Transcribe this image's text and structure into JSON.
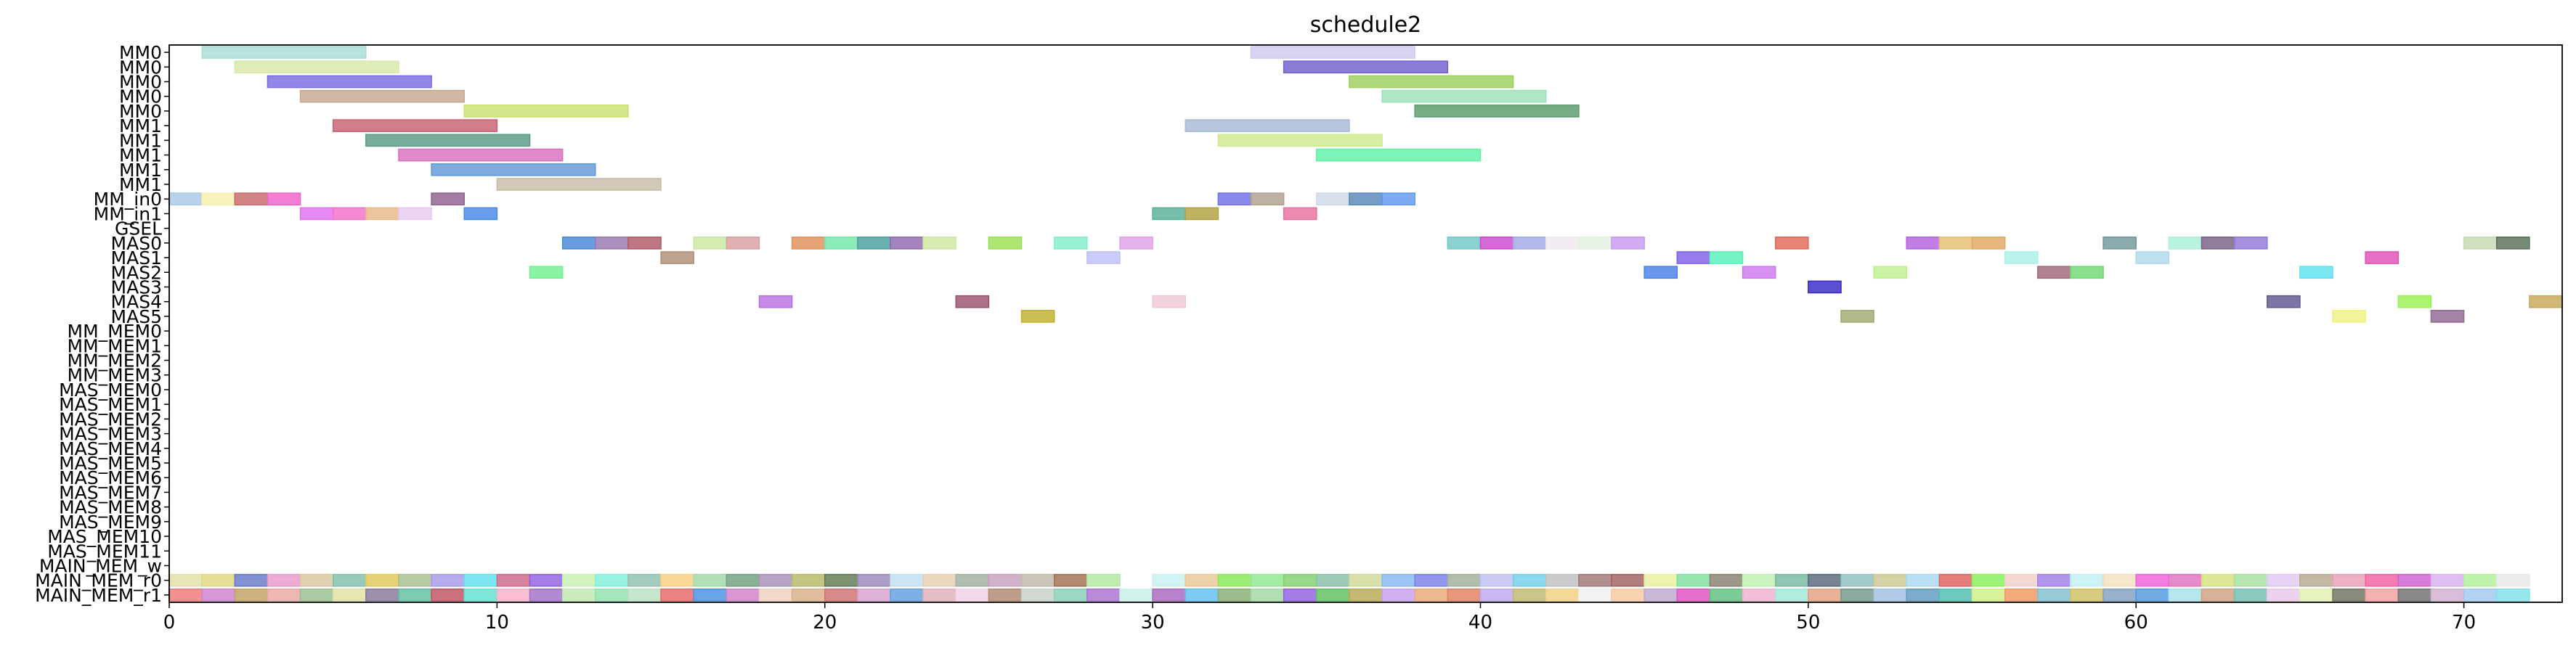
{
  "chart_data": {
    "type": "gantt",
    "title": "schedule2",
    "xlabel": "",
    "ylabel": "",
    "xlim": [
      0,
      73
    ],
    "x_ticks": [
      0,
      10,
      20,
      30,
      40,
      50,
      60,
      70
    ],
    "grid": false,
    "rows": [
      "MM0",
      "MM0",
      "MM0",
      "MM0",
      "MM0",
      "MM1",
      "MM1",
      "MM1",
      "MM1",
      "MM1",
      "MM_in0",
      "MM_in1",
      "GSEL",
      "MAS0",
      "MAS1",
      "MAS2",
      "MAS3",
      "MAS4",
      "MAS5",
      "MM_MEM0",
      "MM_MEM1",
      "MM_MEM2",
      "MM_MEM3",
      "MAS_MEM0",
      "MAS_MEM1",
      "MAS_MEM2",
      "MAS_MEM3",
      "MAS_MEM4",
      "MAS_MEM5",
      "MAS_MEM6",
      "MAS_MEM7",
      "MAS_MEM8",
      "MAS_MEM9",
      "MAS_MEM10",
      "MAS_MEM11",
      "MAIN_MEM_w",
      "MAIN_MEM_r0",
      "MAIN_MEM_r1"
    ],
    "tasks": [
      {
        "row": 0,
        "start": 1,
        "end": 6,
        "color": "#a8dcd6"
      },
      {
        "row": 0,
        "start": 33,
        "end": 38,
        "color": "#cfcaf2"
      },
      {
        "row": 1,
        "start": 2,
        "end": 7,
        "color": "#d7e8a8"
      },
      {
        "row": 1,
        "start": 34,
        "end": 39,
        "color": "#7060d0"
      },
      {
        "row": 2,
        "start": 3,
        "end": 8,
        "color": "#7a6be0"
      },
      {
        "row": 2,
        "start": 36,
        "end": 41,
        "color": "#9ed060"
      },
      {
        "row": 3,
        "start": 4,
        "end": 9,
        "color": "#c8a890"
      },
      {
        "row": 3,
        "start": 37,
        "end": 42,
        "color": "#9ee0b8"
      },
      {
        "row": 4,
        "start": 9,
        "end": 14,
        "color": "#c8e070"
      },
      {
        "row": 4,
        "start": 38,
        "end": 43,
        "color": "#5a9a6a"
      },
      {
        "row": 5,
        "start": 5,
        "end": 10,
        "color": "#c86070"
      },
      {
        "row": 5,
        "start": 31,
        "end": 36,
        "color": "#a8b8d8"
      },
      {
        "row": 6,
        "start": 6,
        "end": 11,
        "color": "#5a9a88"
      },
      {
        "row": 6,
        "start": 32,
        "end": 37,
        "color": "#d0e890"
      },
      {
        "row": 7,
        "start": 7,
        "end": 12,
        "color": "#d870c0"
      },
      {
        "row": 7,
        "start": 35,
        "end": 40,
        "color": "#60f0a8"
      },
      {
        "row": 8,
        "start": 8,
        "end": 13,
        "color": "#6098d8"
      },
      {
        "row": 9,
        "start": 10,
        "end": 15,
        "color": "#c8bca8"
      },
      {
        "row": 10,
        "start": 0,
        "end": 1,
        "color": "#a8c8e8"
      },
      {
        "row": 10,
        "start": 1,
        "end": 2,
        "color": "#f8f0b0"
      },
      {
        "row": 10,
        "start": 2,
        "end": 3,
        "color": "#c86868"
      },
      {
        "row": 10,
        "start": 3,
        "end": 4,
        "color": "#f060c8"
      },
      {
        "row": 10,
        "start": 8,
        "end": 9,
        "color": "#906090"
      },
      {
        "row": 10,
        "start": 32,
        "end": 33,
        "color": "#7070e8"
      },
      {
        "row": 10,
        "start": 33,
        "end": 34,
        "color": "#b0a090"
      },
      {
        "row": 10,
        "start": 35,
        "end": 36,
        "color": "#d0d8e8"
      },
      {
        "row": 10,
        "start": 36,
        "end": 37,
        "color": "#5888b8"
      },
      {
        "row": 10,
        "start": 37,
        "end": 38,
        "color": "#6098f0"
      },
      {
        "row": 11,
        "start": 4,
        "end": 5,
        "color": "#e070f0"
      },
      {
        "row": 11,
        "start": 5,
        "end": 6,
        "color": "#f070c8"
      },
      {
        "row": 11,
        "start": 6,
        "end": 7,
        "color": "#e8b888"
      },
      {
        "row": 11,
        "start": 7,
        "end": 8,
        "color": "#e8c8f0"
      },
      {
        "row": 11,
        "start": 9,
        "end": 10,
        "color": "#4888e8"
      },
      {
        "row": 11,
        "start": 30,
        "end": 31,
        "color": "#58b098"
      },
      {
        "row": 11,
        "start": 31,
        "end": 32,
        "color": "#b0a040"
      },
      {
        "row": 11,
        "start": 34,
        "end": 35,
        "color": "#e870a0"
      },
      {
        "row": 13,
        "start": 12,
        "end": 13,
        "color": "#4888d8"
      },
      {
        "row": 13,
        "start": 13,
        "end": 14,
        "color": "#9878b0"
      },
      {
        "row": 13,
        "start": 14,
        "end": 15,
        "color": "#b05868"
      },
      {
        "row": 13,
        "start": 16,
        "end": 17,
        "color": "#c8e8a0"
      },
      {
        "row": 13,
        "start": 17,
        "end": 18,
        "color": "#d8a0a0"
      },
      {
        "row": 13,
        "start": 19,
        "end": 20,
        "color": "#e09058"
      },
      {
        "row": 13,
        "start": 20,
        "end": 21,
        "color": "#70e8a8"
      },
      {
        "row": 13,
        "start": 21,
        "end": 22,
        "color": "#48a0a0"
      },
      {
        "row": 13,
        "start": 22,
        "end": 23,
        "color": "#9068b0"
      },
      {
        "row": 13,
        "start": 23,
        "end": 24,
        "color": "#d0e8a0"
      },
      {
        "row": 13,
        "start": 25,
        "end": 26,
        "color": "#98e050"
      },
      {
        "row": 13,
        "start": 27,
        "end": 28,
        "color": "#80f0c8"
      },
      {
        "row": 13,
        "start": 29,
        "end": 30,
        "color": "#e0a0e8"
      },
      {
        "row": 13,
        "start": 39,
        "end": 40,
        "color": "#70c8c8"
      },
      {
        "row": 13,
        "start": 40,
        "end": 41,
        "color": "#d048d0"
      },
      {
        "row": 13,
        "start": 41,
        "end": 42,
        "color": "#a0a8e8"
      },
      {
        "row": 13,
        "start": 42,
        "end": 43,
        "color": "#f0e8f0"
      },
      {
        "row": 13,
        "start": 43,
        "end": 44,
        "color": "#e0f0e0"
      },
      {
        "row": 13,
        "start": 44,
        "end": 45,
        "color": "#c898f0"
      },
      {
        "row": 13,
        "start": 49,
        "end": 50,
        "color": "#e06858"
      },
      {
        "row": 13,
        "start": 53,
        "end": 54,
        "color": "#b860e0"
      },
      {
        "row": 13,
        "start": 54,
        "end": 55,
        "color": "#e8c070"
      },
      {
        "row": 13,
        "start": 55,
        "end": 56,
        "color": "#e0a860"
      },
      {
        "row": 13,
        "start": 59,
        "end": 60,
        "color": "#709898"
      },
      {
        "row": 13,
        "start": 61,
        "end": 62,
        "color": "#a8f0d8"
      },
      {
        "row": 13,
        "start": 62,
        "end": 63,
        "color": "#786088"
      },
      {
        "row": 13,
        "start": 63,
        "end": 64,
        "color": "#9078d8"
      },
      {
        "row": 13,
        "start": 70,
        "end": 71,
        "color": "#c8d8b0"
      },
      {
        "row": 13,
        "start": 71,
        "end": 72,
        "color": "#587058"
      },
      {
        "row": 14,
        "start": 15,
        "end": 16,
        "color": "#b09078"
      },
      {
        "row": 14,
        "start": 28,
        "end": 29,
        "color": "#c0c0f8"
      },
      {
        "row": 14,
        "start": 46,
        "end": 47,
        "color": "#8060e8"
      },
      {
        "row": 14,
        "start": 47,
        "end": 48,
        "color": "#58f0b8"
      },
      {
        "row": 14,
        "start": 56,
        "end": 57,
        "color": "#a8f0e8"
      },
      {
        "row": 14,
        "start": 60,
        "end": 61,
        "color": "#b0d8e8"
      },
      {
        "row": 14,
        "start": 67,
        "end": 68,
        "color": "#e050b8"
      },
      {
        "row": 15,
        "start": 11,
        "end": 12,
        "color": "#70f090"
      },
      {
        "row": 15,
        "start": 45,
        "end": 46,
        "color": "#4880e8"
      },
      {
        "row": 15,
        "start": 48,
        "end": 49,
        "color": "#d078f0"
      },
      {
        "row": 15,
        "start": 52,
        "end": 53,
        "color": "#c0f090"
      },
      {
        "row": 15,
        "start": 57,
        "end": 58,
        "color": "#a06878"
      },
      {
        "row": 15,
        "start": 58,
        "end": 59,
        "color": "#70d870"
      },
      {
        "row": 15,
        "start": 65,
        "end": 66,
        "color": "#60e0f0"
      },
      {
        "row": 16,
        "start": 50,
        "end": 51,
        "color": "#3828c8"
      },
      {
        "row": 17,
        "start": 18,
        "end": 19,
        "color": "#b870e0"
      },
      {
        "row": 17,
        "start": 24,
        "end": 25,
        "color": "#985070"
      },
      {
        "row": 17,
        "start": 30,
        "end": 31,
        "color": "#f0c8d8"
      },
      {
        "row": 17,
        "start": 64,
        "end": 65,
        "color": "#605890"
      },
      {
        "row": 17,
        "start": 68,
        "end": 69,
        "color": "#98f050"
      },
      {
        "row": 17,
        "start": 72,
        "end": 73,
        "color": "#c8a858"
      },
      {
        "row": 18,
        "start": 26,
        "end": 27,
        "color": "#c0b030"
      },
      {
        "row": 18,
        "start": 51,
        "end": 52,
        "color": "#a0a870"
      },
      {
        "row": 18,
        "start": 66,
        "end": 67,
        "color": "#f0f080"
      },
      {
        "row": 18,
        "start": 69,
        "end": 70,
        "color": "#906890"
      }
    ],
    "row_strips": [
      {
        "row": 36,
        "start": 0,
        "colors": [
          "#e0e0a8",
          "#e0d880",
          "#6878c8",
          "#e898c8",
          "#d8c8a0",
          "#80c0a8",
          "#e0c858",
          "#a8c090",
          "#a898e8",
          "#60e0f0",
          "#d06888",
          "#9060e0",
          "#c8f0b0",
          "#80f0d8",
          "#90c0b0",
          "#f8d080",
          "#a0d8a8",
          "#70a080",
          "#a890b8",
          "#b8b868",
          "#607850",
          "#9888b8",
          "#c0e0f0",
          "#e8d0b0",
          "#a0b0a0",
          "#c8a0c0",
          "#c0b8a8",
          "#a07050",
          "#b0e8a0",
          "#ffffff",
          "#c8f0f0",
          "#e8c898",
          "#88e858",
          "#90e890",
          "#80d070",
          "#88c0a8",
          "#d0d898",
          "#88b8f0",
          "#7880e8",
          "#a0b098",
          "#c0c0f0",
          "#70d0e8",
          "#c0c0c0",
          "#a07878",
          "#a06060",
          "#e8f0a0",
          "#80e0a0",
          "#8a8070",
          "#c0f0b0",
          "#78b8a0",
          "#586878",
          "#90c0c0",
          "#c8c890",
          "#a8d8f0",
          "#e06060",
          "#88f058",
          "#f0d0c8",
          "#a080e8",
          "#c0f0f0",
          "#f0e0c0",
          "#f060d8",
          "#e070c0",
          "#d8e080",
          "#a8e0a0",
          "#e0c8f0",
          "#b8a890",
          "#e8a0b8",
          "#f060a0",
          "#d060d0",
          "#d8b0f0",
          "#b0f098",
          "#e8e8e8"
        ]
      },
      {
        "row": 37,
        "start": 0,
        "colors": [
          "#f07878",
          "#d080d0",
          "#c0a060",
          "#e8a8a0",
          "#98c090",
          "#e0e0a0",
          "#887898",
          "#60c0a0",
          "#c05060",
          "#60e0d0",
          "#f8b0c8",
          "#a070c8",
          "#c0e8b0",
          "#90e0b0",
          "#b8e0c0",
          "#e86868",
          "#4890e0",
          "#d080c8",
          "#f0d0c0",
          "#d8b088",
          "#d07070",
          "#d8a0d0",
          "#60a0e0",
          "#e0b0b8",
          "#f0d0e8",
          "#b08870",
          "#c8d0c8",
          "#88d0b8",
          "#a870d0",
          "#c8f0e8",
          "#a868c0",
          "#60c0f0",
          "#88b070",
          "#a0d8a0",
          "#9060e0",
          "#60c060",
          "#b8a850",
          "#c8a0f0",
          "#e8a878",
          "#e08060",
          "#c0a8f0",
          "#c0b870",
          "#f0d080",
          "#f0f0f0",
          "#f8c8a0",
          "#c0a8d0",
          "#e050c0",
          "#60c080",
          "#f0b0d0",
          "#a0e8d8",
          "#e0a080",
          "#709888",
          "#a0c0e0",
          "#6098c0",
          "#50c0b0",
          "#d0f080",
          "#f09860",
          "#80c0d0",
          "#d0c060",
          "#80a0c0",
          "#5098e0",
          "#a8e0e8",
          "#d0a080",
          "#70c0b0",
          "#e8c8e8",
          "#e0f0b0",
          "#707060",
          "#f0a0a0",
          "#707070",
          "#d0b0d0",
          "#a0c8f0",
          "#80e0e8"
        ]
      }
    ]
  }
}
